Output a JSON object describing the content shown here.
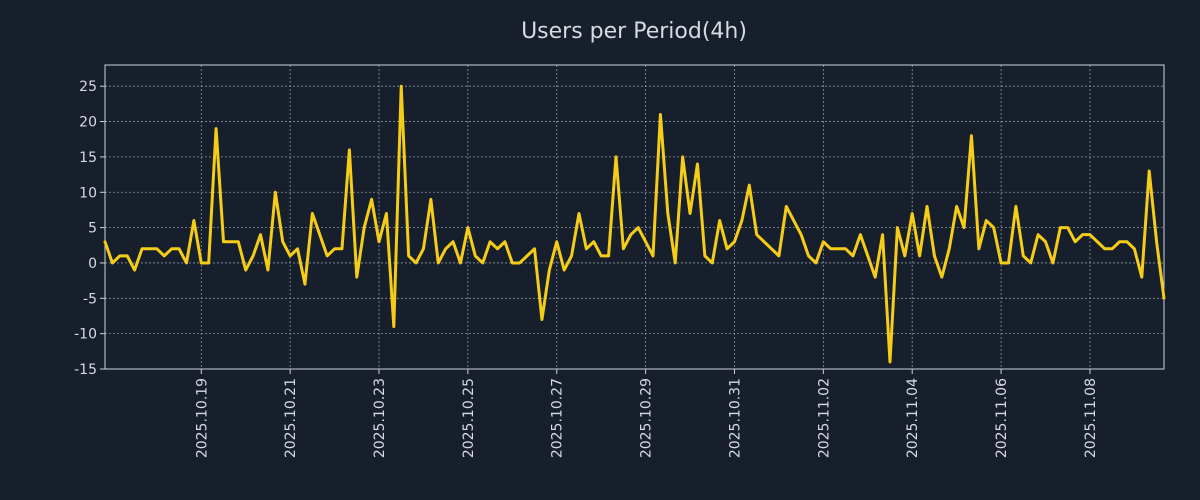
{
  "chart_data": {
    "type": "line",
    "title": "Users per Period(4h)",
    "xlabel": "",
    "ylabel": "",
    "ylim": [
      -15,
      28
    ],
    "yticks": [
      -15,
      -10,
      -5,
      0,
      5,
      10,
      15,
      20,
      25
    ],
    "grid": true,
    "xtick_labels": [
      "2025.10.19",
      "2025.10.21",
      "2025.10.23",
      "2025.10.25",
      "2025.10.27",
      "2025.10.29",
      "2025.10.31",
      "2025.11.02",
      "2025.11.04",
      "2025.11.06",
      "2025.11.08"
    ],
    "xtick_index": [
      13,
      25,
      37,
      49,
      61,
      73,
      85,
      97,
      109,
      121,
      133
    ],
    "series": [
      {
        "name": "Users",
        "color": "#f5cc18",
        "values": [
          3,
          0,
          1,
          1,
          -1,
          2,
          2,
          2,
          1,
          2,
          2,
          0,
          6,
          0,
          0,
          19,
          3,
          3,
          3,
          -1,
          1,
          4,
          -1,
          10,
          3,
          1,
          2,
          -3,
          7,
          4,
          1,
          2,
          2,
          16,
          -2,
          5,
          9,
          3,
          7,
          -9,
          25,
          1,
          0,
          2,
          9,
          0,
          2,
          3,
          0,
          5,
          1,
          0,
          3,
          2,
          3,
          0,
          0,
          1,
          2,
          -8,
          -1,
          3,
          -1,
          1,
          7,
          2,
          3,
          1,
          1,
          15,
          2,
          4,
          5,
          3,
          1,
          21,
          7,
          0,
          15,
          7,
          14,
          1,
          0,
          6,
          2,
          3,
          6,
          11,
          4,
          3,
          2,
          1,
          8,
          6,
          4,
          1,
          0,
          3,
          2,
          2,
          2,
          1,
          4,
          1,
          -2,
          4,
          -14,
          5,
          1,
          7,
          1,
          8,
          1,
          -2,
          2,
          8,
          5,
          18,
          2,
          6,
          5,
          0,
          0,
          8,
          1,
          0,
          4,
          3,
          0,
          5,
          5,
          3,
          4,
          4,
          3,
          2,
          2,
          3,
          3,
          2,
          -2,
          13,
          3,
          -5
        ]
      }
    ]
  }
}
